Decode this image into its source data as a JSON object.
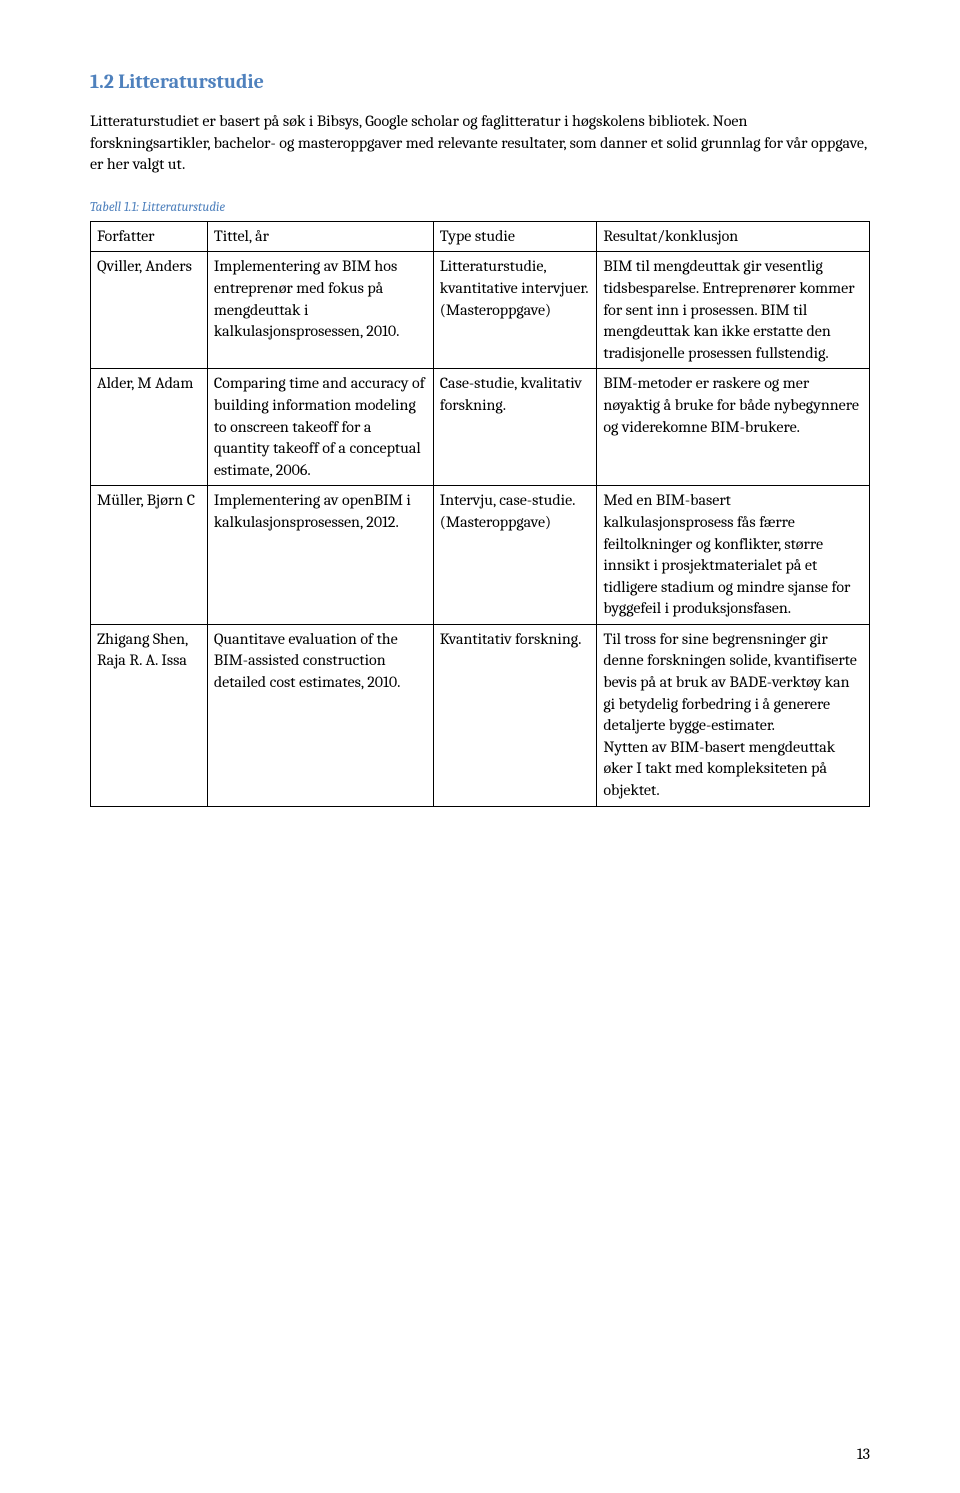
{
  "section": {
    "heading": "1.2 Litteraturstudie",
    "intro": "Litteraturstudiet er basert på søk i Bibsys, Google scholar og faglitteratur i høgskolens bibliotek. Noen forskningsartikler, bachelor- og masteroppgaver med relevante resultater, som danner et solid grunnlag for vår oppgave, er her valgt ut."
  },
  "table": {
    "caption": "Tabell 1.1: Litteraturstudie",
    "columns": [
      "Forfatter",
      "Tittel, år",
      "Type studie",
      "Resultat/konklusjon"
    ],
    "rows": [
      {
        "forfatter": "Qviller, Anders",
        "tittel": "Implementering av BIM hos entreprenør med fokus på mengdeuttak i kalkulasjonsprosessen, 2010.",
        "type": "Litteraturstudie, kvantitative intervjuer. (Masteroppgave)",
        "resultat": "BIM til mengdeuttak gir vesentlig tidsbesparelse. Entreprenører kommer for sent inn i prosessen. BIM til mengdeuttak kan ikke erstatte den tradisjonelle prosessen fullstendig."
      },
      {
        "forfatter": "Alder, M Adam",
        "tittel": "Comparing time and accuracy of building information modeling to onscreen takeoff for a quantity takeoff of a conceptual estimate, 2006.",
        "type": "Case-studie, kvalitativ forskning.",
        "resultat": "BIM-metoder er raskere og mer nøyaktig å bruke for både nybegynnere og viderekomne BIM-brukere."
      },
      {
        "forfatter": "Müller, Bjørn C",
        "tittel": "Implementering av openBIM i kalkulasjonsprosessen, 2012.",
        "type": "Intervju, case-studie. (Masteroppgave)",
        "resultat": "Med en BIM-basert kalkulasjonsprosess fås færre feiltolkninger og konflikter, større innsikt i prosjektmaterialet på et tidligere stadium og mindre sjanse for byggefeil i produksjonsfasen."
      },
      {
        "forfatter": "Zhigang Shen, Raja R. A. Issa",
        "tittel": "Quantitave evaluation of the BIM-assisted construction detailed cost estimates, 2010.",
        "type": "Kvantitativ forskning.",
        "resultat": "Til tross for sine begrensninger gir denne forskningen solide, kvantifiserte bevis på at bruk av BADE-verktøy kan gi betydelig forbedring i å generere detaljerte bygge-estimater.\nNytten av BIM-basert mengdeuttak øker I takt med kompleksiteten på objektet."
      }
    ]
  },
  "pageNumber": "13"
}
